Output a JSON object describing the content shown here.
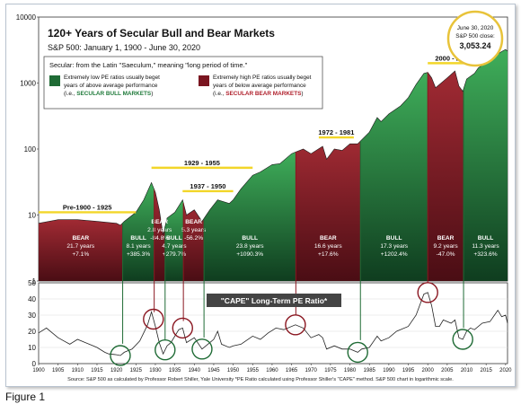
{
  "figure_caption": "Figure 1",
  "chart_data": {
    "type": "area",
    "title": "120+ Years of Secular Bull and Bear Markets",
    "subtitle": "S&P 500: January 1, 1900 - June 30, 2020",
    "y_scale": "log",
    "ylim": [
      1,
      10000
    ],
    "y_ticks": [
      "1",
      "10",
      "100",
      "1000",
      "10000"
    ],
    "xlim": [
      1900,
      2020.5
    ],
    "x_ticks": [
      "1900",
      "1905",
      "1910",
      "1915",
      "1920",
      "1925",
      "1930",
      "1935",
      "1940",
      "1945",
      "1950",
      "1955",
      "1960",
      "1965",
      "1970",
      "1975",
      "1980",
      "1985",
      "1990",
      "1995",
      "2000",
      "2005",
      "2010",
      "2015",
      "2020"
    ],
    "close_box": {
      "date": "June 30, 2020",
      "label": "S&P 500 close:",
      "value": "3,053.24"
    },
    "legend": {
      "heading": "Secular: from the Latin \"Saeculum,\" meaning \"long period of time.\"",
      "bull_line1": "Extremely low PE ratios usually beget",
      "bull_line2": "years of above average performance",
      "bull_line3_prefix": "(i.e., ",
      "bull_line3_emph": "SECULAR BULL MARKETS",
      "bull_line3_suffix": ")",
      "bear_line1": "Extremely high PE ratios usually beget",
      "bear_line2": "years of below average performance",
      "bear_line3_prefix": "(i.e., ",
      "bear_line3_emph": "SECULAR BEAR MARKETS",
      "bear_line3_suffix": ")",
      "bull_color": "#1f6b35",
      "bear_color": "#7a1520"
    },
    "series": [
      {
        "name": "S&P 500",
        "points": [
          [
            1900,
            7.5
          ],
          [
            1905,
            8.5
          ],
          [
            1910,
            8.5
          ],
          [
            1915,
            8
          ],
          [
            1920,
            7.5
          ],
          [
            1921,
            7
          ],
          [
            1922,
            8
          ],
          [
            1925,
            11
          ],
          [
            1927,
            17
          ],
          [
            1929,
            31
          ],
          [
            1930,
            22
          ],
          [
            1931,
            12
          ],
          [
            1932,
            5
          ],
          [
            1933,
            9
          ],
          [
            1935,
            11
          ],
          [
            1937,
            17
          ],
          [
            1938,
            10
          ],
          [
            1940,
            12
          ],
          [
            1942,
            8
          ],
          [
            1944,
            12
          ],
          [
            1946,
            17
          ],
          [
            1949,
            15
          ],
          [
            1950,
            17
          ],
          [
            1952,
            25
          ],
          [
            1955,
            40
          ],
          [
            1957,
            45
          ],
          [
            1960,
            58
          ],
          [
            1962,
            60
          ],
          [
            1965,
            85
          ],
          [
            1966,
            90
          ],
          [
            1968,
            100
          ],
          [
            1970,
            85
          ],
          [
            1973,
            110
          ],
          [
            1974,
            70
          ],
          [
            1976,
            100
          ],
          [
            1978,
            95
          ],
          [
            1980,
            120
          ],
          [
            1982,
            120
          ],
          [
            1985,
            180
          ],
          [
            1987,
            300
          ],
          [
            1988,
            260
          ],
          [
            1990,
            340
          ],
          [
            1993,
            450
          ],
          [
            1995,
            600
          ],
          [
            1997,
            950
          ],
          [
            1999,
            1400
          ],
          [
            2000,
            1450
          ],
          [
            2001,
            1200
          ],
          [
            2002,
            850
          ],
          [
            2003,
            950
          ],
          [
            2005,
            1200
          ],
          [
            2007,
            1520
          ],
          [
            2008,
            900
          ],
          [
            2009,
            750
          ],
          [
            2010,
            1150
          ],
          [
            2012,
            1400
          ],
          [
            2013,
            1700
          ],
          [
            2015,
            2050
          ],
          [
            2017,
            2400
          ],
          [
            2018,
            2750
          ],
          [
            2019,
            3000
          ],
          [
            2020,
            3230
          ],
          [
            2020.5,
            3053
          ]
        ]
      }
    ],
    "periods": [
      {
        "type": "BEAR",
        "start": 1900,
        "end": 1921.6,
        "years": "21.7 years",
        "ret": "+7.1%"
      },
      {
        "type": "BULL",
        "start": 1921.6,
        "end": 1929.7,
        "years": "8.1 years",
        "ret": "+385.3%"
      },
      {
        "type": "BEAR",
        "start": 1929.7,
        "end": 1932.5,
        "years": "2.8 years",
        "ret": "-84.8%"
      },
      {
        "type": "BULL",
        "start": 1932.5,
        "end": 1937.2,
        "years": "4.7 years",
        "ret": "+279.7%"
      },
      {
        "type": "BEAR",
        "start": 1937.2,
        "end": 1942.5,
        "years": "5.3 years",
        "ret": "-56.2%"
      },
      {
        "type": "BULL",
        "start": 1942.5,
        "end": 1966.1,
        "years": "23.8 years",
        "ret": "+1090.3%"
      },
      {
        "type": "BEAR",
        "start": 1966.1,
        "end": 1982.7,
        "years": "16.6 years",
        "ret": "+17.6%"
      },
      {
        "type": "BULL",
        "start": 1982.7,
        "end": 2000.0,
        "years": "17.3 years",
        "ret": "+1202.4%"
      },
      {
        "type": "BEAR",
        "start": 2000.0,
        "end": 2009.2,
        "years": "9.2 years",
        "ret": "-47.0%"
      },
      {
        "type": "BULL",
        "start": 2009.2,
        "end": 2020.5,
        "years": "11.3 years",
        "ret": "+323.6%"
      }
    ],
    "span_labels": [
      {
        "text": "Pre-1900 - 1925",
        "start": 1900,
        "end": 1925,
        "level": 11
      },
      {
        "text": "1929 - 1955",
        "start": 1929,
        "end": 1955,
        "level": 52
      },
      {
        "text": "1937 - 1950",
        "start": 1937,
        "end": 1950,
        "level": 23
      },
      {
        "text": "1972 - 1981",
        "start": 1972,
        "end": 1981,
        "level": 150
      },
      {
        "text": "2000 - 2013",
        "start": 2000,
        "end": 2013,
        "level": 2000
      }
    ],
    "cape": {
      "title": "\"CAPE\" Long-Term PE Ratio*",
      "ylim": [
        0,
        50
      ],
      "y_ticks": [
        "0",
        "10",
        "20",
        "30",
        "40",
        "50"
      ],
      "points": [
        [
          1900,
          19
        ],
        [
          1902,
          22
        ],
        [
          1905,
          16
        ],
        [
          1908,
          12
        ],
        [
          1910,
          15
        ],
        [
          1913,
          12
        ],
        [
          1915,
          10
        ],
        [
          1917,
          7
        ],
        [
          1918,
          6
        ],
        [
          1920,
          5.5
        ],
        [
          1921,
          5
        ],
        [
          1922,
          7
        ],
        [
          1924,
          9
        ],
        [
          1926,
          14
        ],
        [
          1928,
          24
        ],
        [
          1929,
          32
        ],
        [
          1930,
          23
        ],
        [
          1931,
          13
        ],
        [
          1932,
          6
        ],
        [
          1933,
          11
        ],
        [
          1934,
          13
        ],
        [
          1936,
          21
        ],
        [
          1937,
          22
        ],
        [
          1938,
          13
        ],
        [
          1940,
          16
        ],
        [
          1942,
          9
        ],
        [
          1943,
          11
        ],
        [
          1945,
          15
        ],
        [
          1946,
          20
        ],
        [
          1947,
          12
        ],
        [
          1949,
          10
        ],
        [
          1950,
          11
        ],
        [
          1952,
          12
        ],
        [
          1955,
          17
        ],
        [
          1957,
          15
        ],
        [
          1959,
          19
        ],
        [
          1961,
          22
        ],
        [
          1963,
          21
        ],
        [
          1966,
          24
        ],
        [
          1968,
          22
        ],
        [
          1970,
          16
        ],
        [
          1972,
          18
        ],
        [
          1973,
          16
        ],
        [
          1974,
          9
        ],
        [
          1976,
          11
        ],
        [
          1978,
          9
        ],
        [
          1980,
          9
        ],
        [
          1982,
          7
        ],
        [
          1983,
          9
        ],
        [
          1985,
          10
        ],
        [
          1987,
          17
        ],
        [
          1988,
          14
        ],
        [
          1990,
          16
        ],
        [
          1992,
          20
        ],
        [
          1995,
          23
        ],
        [
          1997,
          30
        ],
        [
          1999,
          43
        ],
        [
          2000,
          44
        ],
        [
          2001,
          36
        ],
        [
          2002,
          23
        ],
        [
          2003,
          23
        ],
        [
          2004,
          27
        ],
        [
          2006,
          25
        ],
        [
          2007,
          27
        ],
        [
          2008,
          16
        ],
        [
          2009,
          15
        ],
        [
          2010,
          20
        ],
        [
          2011,
          22
        ],
        [
          2012,
          21
        ],
        [
          2014,
          25
        ],
        [
          2016,
          26
        ],
        [
          2018,
          33
        ],
        [
          2019,
          29
        ],
        [
          2020,
          30
        ],
        [
          2020.5,
          25
        ]
      ],
      "circles_high": [
        1929.5,
        1937,
        1966,
        2000
      ],
      "circles_low": [
        1921,
        1932.5,
        1942,
        1982,
        2009
      ]
    },
    "source_note": "Source: S&P 500 as calculated by Professor Robert Shiller, Yale University  *PE Ratio calculated using Professor Shiller's \"CAPE\" method. S&P 500 chart in logarithmic scale.",
    "grid": false
  }
}
